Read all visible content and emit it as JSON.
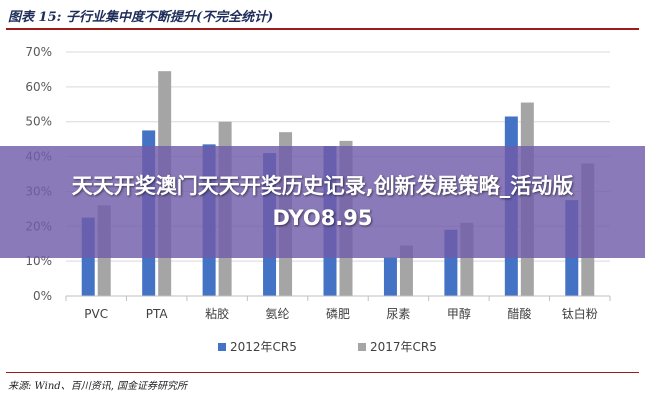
{
  "figure": {
    "title": "图表 15:  子行业集中度不断提升(不完全统计)",
    "source": "来源: Wind、百川资讯, 国金证券研究所"
  },
  "overlay": {
    "text": "天天开奖澳门天天开奖历史记录,创新发展策略_活动版DYO8.95"
  },
  "colors": {
    "series_2012": "#4472c4",
    "series_2017": "#a5a5a5",
    "gridline": "#d9d9d9",
    "axis": "#bfbfbf",
    "title_rule": "#9e1b1b"
  },
  "chart_data": {
    "type": "bar",
    "title": "",
    "xlabel": "",
    "ylabel": "",
    "categories": [
      "PVC",
      "PTA",
      "粘胶",
      "氨纶",
      "磷肥",
      "尿素",
      "甲醇",
      "醋酸",
      "钛白粉"
    ],
    "series": [
      {
        "name": "2012年CR5",
        "values": [
          22.5,
          47.5,
          43.5,
          41,
          43,
          11,
          19,
          51.5,
          27.5
        ]
      },
      {
        "name": "2017年CR5",
        "values": [
          26,
          64.5,
          50,
          47,
          44.5,
          14.5,
          21,
          55.5,
          38
        ]
      }
    ],
    "ylim": [
      0,
      70
    ],
    "yticks": [
      "0%",
      "10%",
      "20%",
      "30%",
      "40%",
      "50%",
      "60%",
      "70%"
    ],
    "grid": true,
    "legend": "bottom"
  }
}
